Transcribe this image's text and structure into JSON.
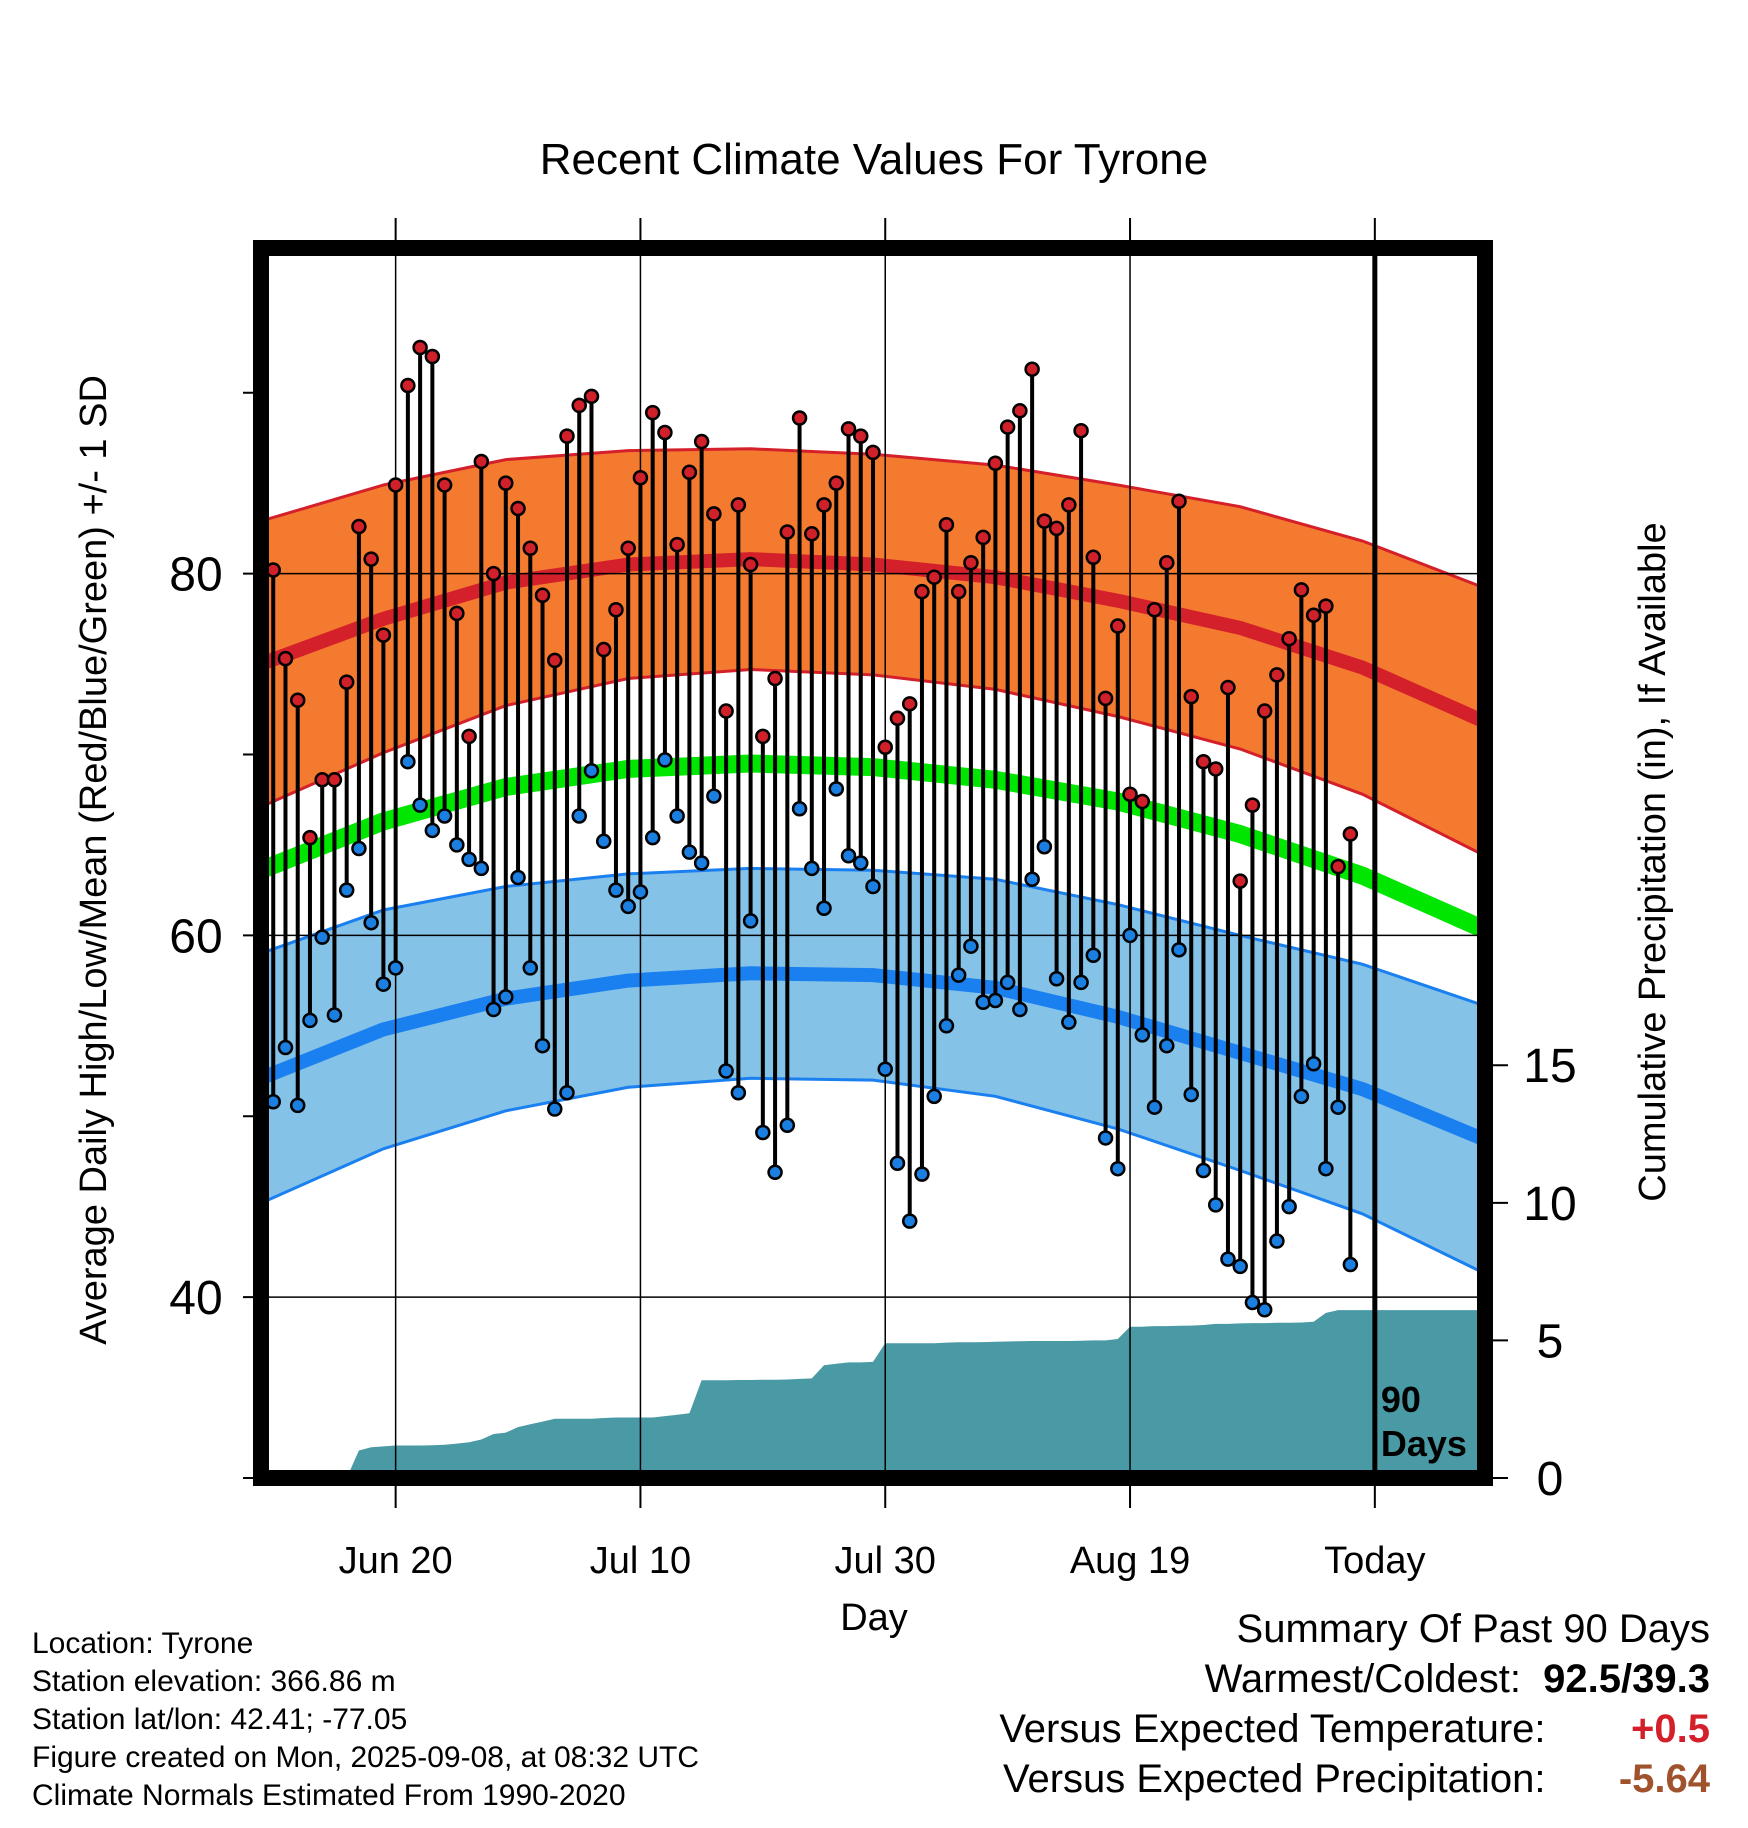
{
  "chart_data": {
    "type": "line",
    "title": "Recent Climate Values For Tyrone",
    "xlabel": "Day",
    "ylabel_left": "Average Daily High/Low/Mean (Red/Blue/Green) +/- 1 SD",
    "ylabel_right": "Cumulative Precipitation (in), If Available",
    "x_ticks": [
      "Jun 20",
      "Jul 10",
      "Jul 30",
      "Aug 19",
      "Today"
    ],
    "y_ticks_left": [
      40,
      60,
      80
    ],
    "y_ticks_right": [
      0,
      5,
      10,
      15
    ],
    "ylim_left": [
      30,
      98
    ],
    "ylim_right": [
      0,
      44.7
    ],
    "x_range": [
      "2025-06-09",
      "2025-09-17"
    ],
    "today": "2025-09-08",
    "today_label": "90 Days",
    "grid": true,
    "colors": {
      "high_band": "#f47a30",
      "high_line": "#d4202a",
      "low_band": "#85c2e8",
      "low_line": "#1a80f0",
      "mean_line": "#00e600",
      "high_point": "#d0202a",
      "low_point": "#1a7fe0",
      "precip": "#4a9aa5"
    },
    "normals": {
      "dates": [
        "2025-06-09",
        "2025-06-19",
        "2025-06-29",
        "2025-07-09",
        "2025-07-19",
        "2025-07-29",
        "2025-08-08",
        "2025-08-18",
        "2025-08-28",
        "2025-09-07",
        "2025-09-17"
      ],
      "high_mean": [
        75.0,
        77.5,
        79.5,
        80.5,
        80.8,
        80.5,
        79.8,
        78.5,
        77.0,
        74.8,
        71.8
      ],
      "high_sd": [
        7.9,
        7.4,
        6.8,
        6.3,
        6.1,
        6.1,
        6.2,
        6.4,
        6.7,
        7.0,
        7.4
      ],
      "low_mean": [
        52.1,
        54.8,
        56.5,
        57.5,
        57.9,
        57.8,
        57.1,
        55.5,
        53.5,
        51.5,
        48.7
      ],
      "low_sd": [
        6.9,
        6.6,
        6.2,
        5.9,
        5.8,
        5.8,
        6.0,
        6.2,
        6.5,
        6.9,
        7.4
      ],
      "avg_mean": [
        63.6,
        66.3,
        68.2,
        69.2,
        69.5,
        69.3,
        68.6,
        67.4,
        65.6,
        63.3,
        60.3
      ]
    },
    "daily": {
      "start_date": "2025-06-09",
      "high": [
        74.6,
        80.2,
        75.3,
        73.0,
        65.4,
        68.6,
        68.6,
        74.0,
        82.6,
        80.8,
        76.6,
        84.9,
        90.4,
        92.5,
        92.0,
        84.9,
        77.8,
        71.0,
        86.2,
        80.0,
        85.0,
        83.6,
        81.4,
        78.8,
        75.2,
        87.6,
        89.3,
        89.8,
        75.8,
        78.0,
        81.4,
        85.3,
        88.9,
        87.8,
        81.6,
        85.6,
        87.3,
        83.3,
        72.4,
        83.8,
        80.5,
        71.0,
        74.2,
        82.3,
        88.6,
        82.2,
        83.8,
        85.0,
        88.0,
        87.6,
        86.7,
        70.4,
        72.0,
        72.8,
        79.0,
        79.8,
        82.7,
        79.0,
        80.6,
        82.0,
        86.1,
        88.1,
        89.0,
        91.3,
        82.9,
        82.5,
        83.8,
        87.9,
        80.9,
        73.1,
        77.1,
        67.8,
        67.4,
        78.0,
        80.6,
        84.0,
        73.2,
        69.6,
        69.2,
        73.7,
        63.0,
        67.2,
        72.4,
        74.4,
        76.4,
        79.1,
        77.7,
        78.2,
        63.8,
        65.6
      ],
      "low": [
        51.6,
        50.8,
        53.8,
        50.6,
        55.3,
        59.9,
        55.6,
        62.5,
        64.8,
        60.7,
        57.3,
        58.2,
        69.6,
        67.2,
        65.8,
        66.6,
        65.0,
        64.2,
        63.7,
        55.9,
        56.6,
        63.2,
        58.2,
        53.9,
        50.4,
        51.3,
        66.6,
        69.1,
        65.2,
        62.5,
        61.6,
        62.4,
        65.4,
        69.7,
        66.6,
        64.6,
        64.0,
        67.7,
        52.5,
        51.3,
        60.8,
        49.1,
        46.9,
        49.5,
        67.0,
        63.7,
        61.5,
        68.1,
        64.4,
        64.0,
        62.7,
        52.6,
        47.4,
        44.2,
        46.8,
        51.1,
        55.0,
        57.8,
        59.4,
        56.3,
        56.4,
        57.4,
        55.9,
        63.1,
        64.9,
        57.6,
        55.2,
        57.4,
        58.9,
        48.8,
        47.1,
        60.0,
        54.5,
        50.5,
        53.9,
        59.2,
        51.2,
        47.0,
        45.1,
        42.1,
        41.7,
        39.7,
        39.3,
        43.1,
        45.0,
        51.1,
        52.9,
        47.1,
        50.5,
        41.8
      ]
    },
    "precip_cumulative": {
      "start_date": "2025-06-09",
      "values": [
        0,
        0,
        0,
        0,
        0,
        0,
        0,
        0,
        1.0,
        1.12,
        1.15,
        1.18,
        1.18,
        1.18,
        1.19,
        1.21,
        1.25,
        1.3,
        1.4,
        1.6,
        1.65,
        1.85,
        1.95,
        2.05,
        2.15,
        2.15,
        2.15,
        2.15,
        2.18,
        2.2,
        2.2,
        2.2,
        2.2,
        2.25,
        2.3,
        2.35,
        3.55,
        3.55,
        3.55,
        3.56,
        3.56,
        3.57,
        3.57,
        3.58,
        3.6,
        3.62,
        4.1,
        4.15,
        4.2,
        4.2,
        4.22,
        4.9,
        4.9,
        4.9,
        4.9,
        4.9,
        4.92,
        4.93,
        4.93,
        4.94,
        4.95,
        4.96,
        4.97,
        4.98,
        4.98,
        4.98,
        4.98,
        4.99,
        5.0,
        5.0,
        5.05,
        5.5,
        5.5,
        5.52,
        5.52,
        5.53,
        5.54,
        5.56,
        5.6,
        5.6,
        5.62,
        5.63,
        5.63,
        5.64,
        5.64,
        5.65,
        5.68,
        6.0,
        6.1,
        6.1,
        6.1
      ]
    }
  },
  "info": {
    "location": "Location: Tyrone",
    "elevation": "Station elevation: 366.86 m",
    "latlon": "Station lat/lon: 42.41; -77.05",
    "created": "Figure created on Mon, 2025-09-08, at 08:32 UTC",
    "normals": "Climate Normals Estimated From 1990-2020"
  },
  "summary": {
    "title": "Summary Of Past 90 Days",
    "warm_cold_label": "Warmest/Coldest:",
    "warm_cold_value": "92.5/39.3",
    "temp_label": "Versus Expected Temperature:",
    "temp_value": "+0.5",
    "temp_color": "#d4202a",
    "precip_label": "Versus Expected Precipitation:",
    "precip_value": "-5.64",
    "precip_color": "#a0522d"
  }
}
